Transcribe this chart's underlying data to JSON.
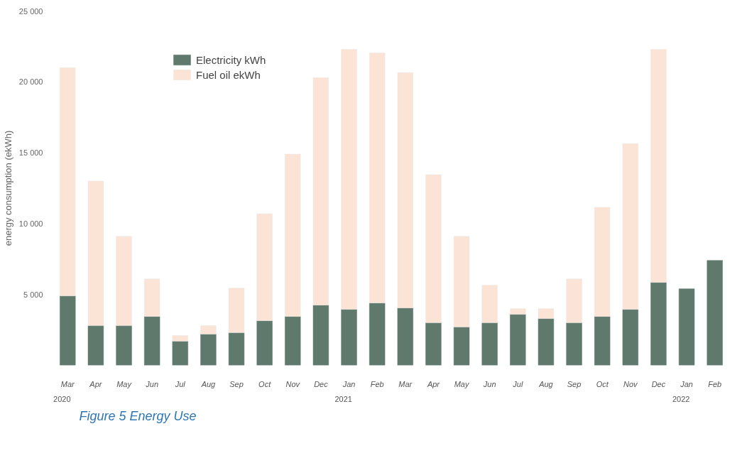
{
  "chart_data": {
    "type": "bar",
    "title": "Figure 5 Energy Use",
    "ylabel": "energy consumption (ekWh)",
    "categories": [
      "Mar",
      "Apr",
      "May",
      "Jun",
      "Jul",
      "Aug",
      "Sep",
      "Oct",
      "Nov",
      "Dec",
      "Jan",
      "Feb",
      "Mar",
      "Apr",
      "May",
      "Jun",
      "Jul",
      "Aug",
      "Sep",
      "Oct",
      "Nov",
      "Dec",
      "Jan",
      "Feb"
    ],
    "series": [
      {
        "name": "Electricity kWh",
        "color": "#5f7a6c",
        "values": [
          4900,
          2800,
          2800,
          3450,
          1700,
          2200,
          2300,
          3150,
          3450,
          4250,
          3950,
          4400,
          4050,
          3000,
          2700,
          3000,
          3600,
          3300,
          3000,
          3450,
          3950,
          5850,
          5400,
          7400
        ]
      },
      {
        "name": "Fuel oil ekWh",
        "color": "#fbe3d6",
        "values": [
          16100,
          10200,
          6300,
          2650,
          400,
          600,
          3150,
          7550,
          11450,
          16050,
          18350,
          17650,
          16600,
          10450,
          6400,
          2650,
          400,
          700,
          3100,
          7700,
          11700,
          16450,
          null,
          null
        ]
      }
    ],
    "stacked": true,
    "annotations": [
      "2020",
      "2021",
      "2022"
    ],
    "ylim": [
      0,
      25000
    ],
    "yticks": [
      {
        "value": 5000,
        "label": "5 000"
      },
      {
        "value": 10000,
        "label": "10 000"
      },
      {
        "value": 15000,
        "label": "15 000"
      },
      {
        "value": 20000,
        "label": "20 000"
      },
      {
        "value": 25000,
        "label": "25 000"
      }
    ],
    "grid": false,
    "legend": "top"
  }
}
